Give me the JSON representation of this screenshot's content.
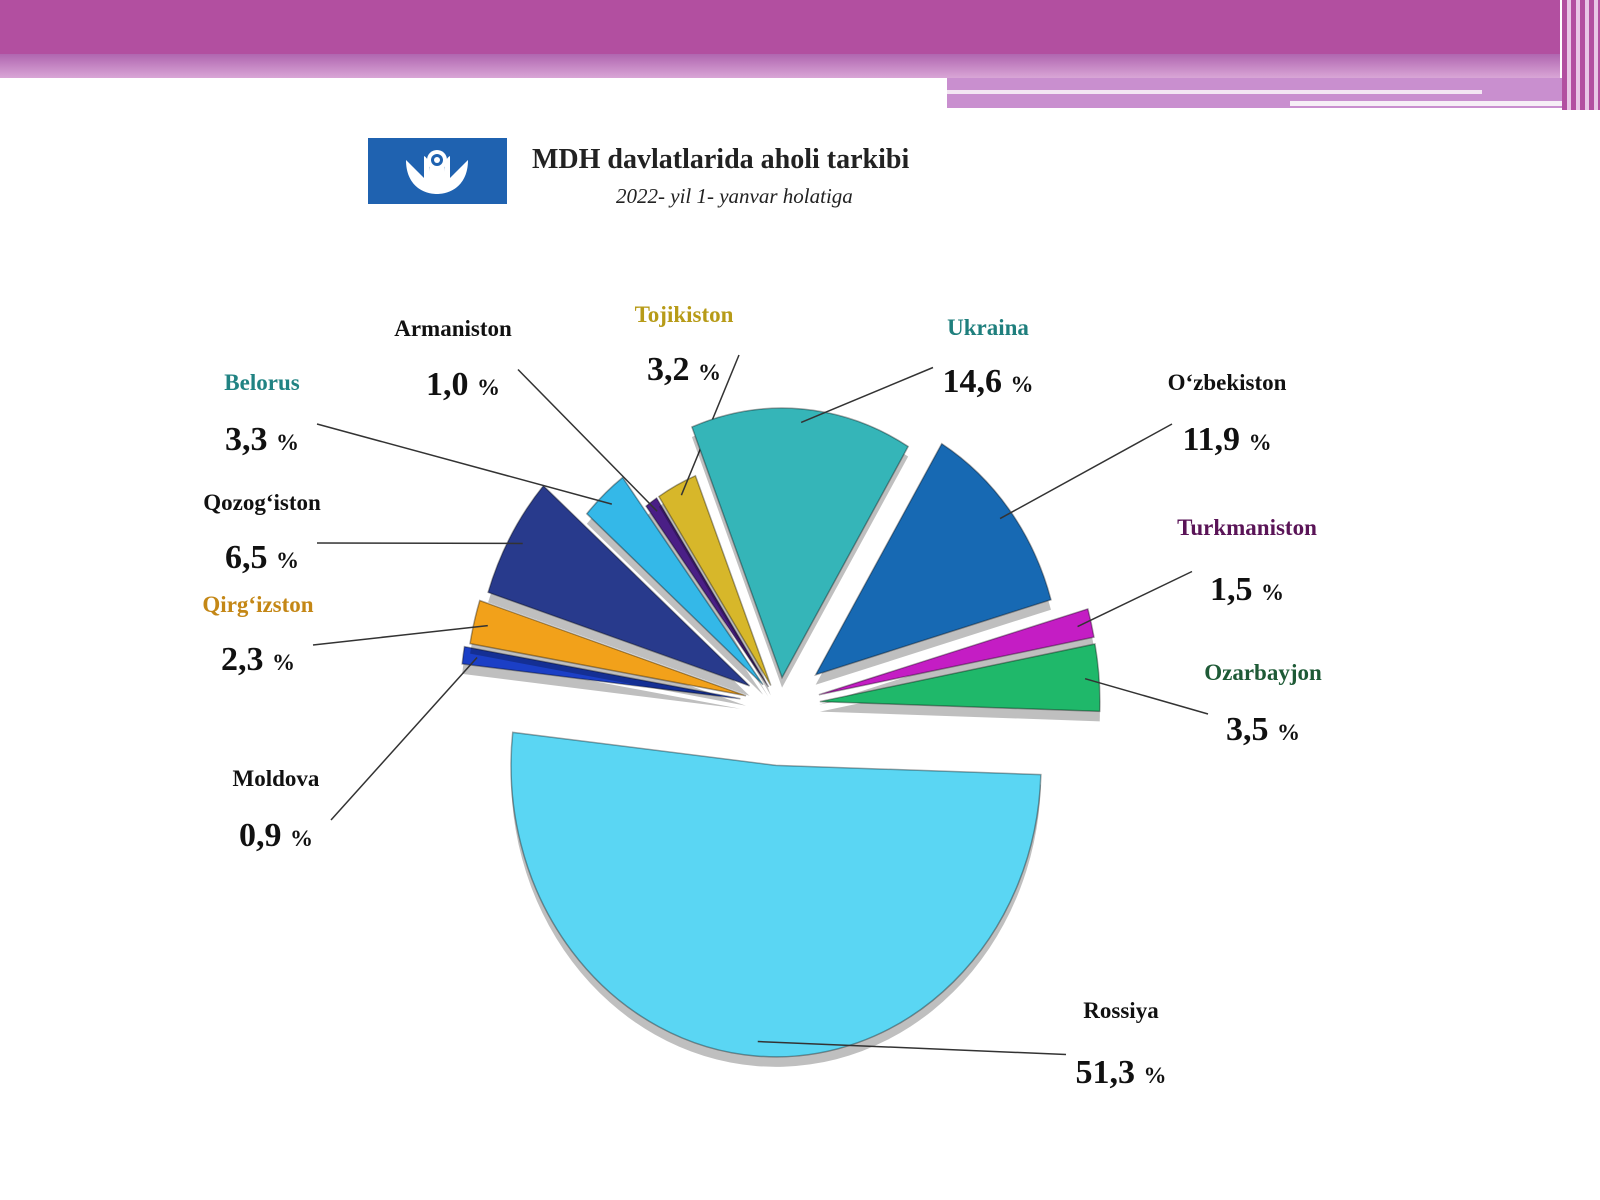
{
  "header": {
    "title": "MDH davlatlarida aholi tarkibi",
    "subtitle": "2022- yil 1- yanvar holatiga"
  },
  "chart_data": {
    "type": "pie",
    "title": "MDH davlatlarida aholi tarkibi",
    "subtitle": "2022- yil 1- yanvar holatiga",
    "unit": "%",
    "slices": [
      {
        "name": "Armaniston",
        "value": 1.0,
        "label": "1,0",
        "color": "#4a1f86",
        "label_color": "#111111"
      },
      {
        "name": "Tojikiston",
        "value": 3.2,
        "label": "3,2",
        "color": "#d7b72a",
        "label_color": "#b79b18"
      },
      {
        "name": "Ukraina",
        "value": 14.6,
        "label": "14,6",
        "color": "#35b5b8",
        "label_color": "#1f7f7d"
      },
      {
        "name": "O‘zbekiston",
        "value": 11.9,
        "label": "11,9",
        "color": "#1769b3",
        "label_color": "#111111"
      },
      {
        "name": "Turkmaniston",
        "value": 1.5,
        "label": "1,5",
        "color": "#c41dc4",
        "label_color": "#5a1457"
      },
      {
        "name": "Ozarbayjon",
        "value": 3.5,
        "label": "3,5",
        "color": "#1fb86a",
        "label_color": "#1e5a36"
      },
      {
        "name": "Rossiya",
        "value": 51.3,
        "label": "51,3",
        "color": "#5ad6f3",
        "label_color": "#111111"
      },
      {
        "name": "Moldova",
        "value": 0.9,
        "label": "0,9",
        "color": "#1b3fc6",
        "label_color": "#111111"
      },
      {
        "name": "Qirg‘izston",
        "value": 2.3,
        "label": "2,3",
        "color": "#f2a11a",
        "label_color": "#c48716"
      },
      {
        "name": "Qozog‘iston",
        "value": 6.5,
        "label": "6,5",
        "color": "#283a8c",
        "label_color": "#111111"
      },
      {
        "name": "Belorus",
        "value": 3.3,
        "label": "3,3",
        "color": "#34b8e8",
        "label_color": "#218383"
      }
    ]
  }
}
